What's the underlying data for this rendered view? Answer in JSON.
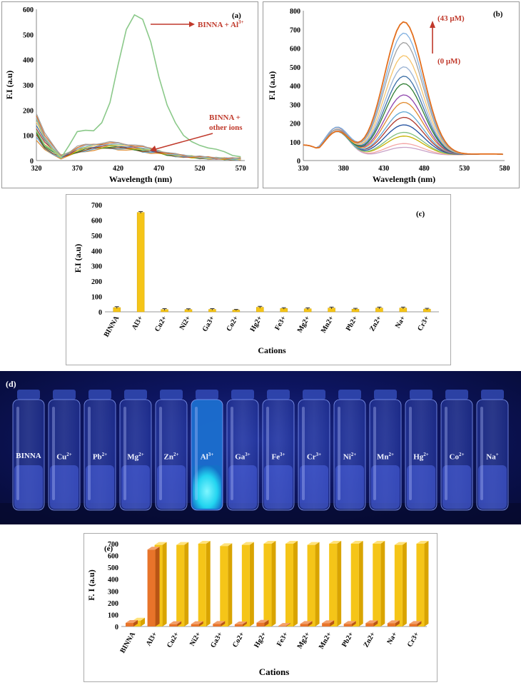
{
  "colors": {
    "series_red": "#c0392b",
    "bar_yellow": "#f5c518",
    "bar_orange": "#e8742a",
    "al_green": "#8bc98a"
  },
  "panel_a": {
    "label": "(a)",
    "ylabel": "F.I (a.u)",
    "xlabel": "Wavelength (nm)",
    "ann_al_prefix": "BINNA + Al",
    "ann_al_sup": "3+",
    "ann_other_1": "BINNA +",
    "ann_other_2": "other ions",
    "chart_data": {
      "type": "line",
      "title": "(a)",
      "xlabel": "Wavelength (nm)",
      "ylabel": "F.I (a.u)",
      "xlim": [
        320,
        575
      ],
      "ylim": [
        0,
        600
      ],
      "xticks": [
        "320",
        "370",
        "420",
        "470",
        "520",
        "570"
      ],
      "yticks": [
        "0",
        "100",
        "200",
        "300",
        "400",
        "500",
        "600"
      ],
      "series": [
        {
          "name": "BINNA + Al3+",
          "x": [
            320,
            330,
            340,
            350,
            360,
            370,
            380,
            390,
            400,
            410,
            420,
            430,
            440,
            450,
            460,
            470,
            480,
            490,
            500,
            510,
            520,
            530,
            540,
            550,
            560,
            570
          ],
          "values": [
            120,
            60,
            40,
            10,
            60,
            115,
            120,
            118,
            150,
            230,
            380,
            520,
            578,
            560,
            470,
            330,
            220,
            150,
            100,
            75,
            60,
            50,
            45,
            35,
            20,
            15
          ]
        },
        {
          "name": "BINNA + other ions (upper)",
          "x": [
            320,
            330,
            340,
            350,
            360,
            370,
            380,
            390,
            400,
            410,
            420,
            430,
            440,
            450,
            460,
            470,
            480,
            490,
            500,
            510,
            520,
            530,
            540,
            550,
            560,
            570
          ],
          "values": [
            190,
            110,
            60,
            20,
            35,
            55,
            62,
            66,
            70,
            72,
            70,
            66,
            62,
            55,
            48,
            40,
            30,
            25,
            20,
            18,
            15,
            12,
            10,
            10,
            8,
            8
          ]
        },
        {
          "name": "BINNA + other ions (lower)",
          "x": [
            320,
            330,
            340,
            350,
            360,
            370,
            380,
            390,
            400,
            410,
            420,
            430,
            440,
            450,
            460,
            470,
            480,
            490,
            500,
            510,
            520,
            530,
            540,
            550,
            560,
            570
          ],
          "values": [
            80,
            40,
            25,
            10,
            18,
            30,
            38,
            42,
            45,
            48,
            46,
            42,
            40,
            35,
            32,
            28,
            22,
            18,
            15,
            12,
            10,
            8,
            8,
            6,
            5,
            5
          ]
        }
      ]
    }
  },
  "panel_b": {
    "label": "(b)",
    "ylabel": "F.I (a.u)",
    "xlabel": "Wavelength (nm)",
    "ann_top": "(43 μM)",
    "ann_bottom": "(0 μM)",
    "chart_data": {
      "type": "line",
      "title": "(b)",
      "xlabel": "Wavelength (nm)",
      "ylabel": "F.I (a.u)",
      "xlim": [
        330,
        580
      ],
      "ylim": [
        0,
        800
      ],
      "xticks": [
        "330",
        "380",
        "430",
        "480",
        "530",
        "580"
      ],
      "yticks": [
        "0",
        "100",
        "200",
        "300",
        "400",
        "500",
        "600",
        "700",
        "800"
      ],
      "peak_wavelength": 455,
      "series_peaks": [
        90,
        110,
        150,
        170,
        210,
        250,
        280,
        330,
        370,
        430,
        470,
        520,
        580,
        650,
        700,
        760
      ],
      "series_colors": [
        "#c8a2c8",
        "#f4a6a6",
        "#c6b200",
        "#7fbf7f",
        "#1f4e9e",
        "#b03a2e",
        "#5fa8d3",
        "#e08a2d",
        "#8e44ad",
        "#2e7d32",
        "#3a6ea5",
        "#9ab2d3",
        "#f6c46a",
        "#a0a0a0",
        "#80b0e0",
        "#e36f1e"
      ]
    }
  },
  "panel_c": {
    "label": "(c)",
    "ylabel": "F.I (a.u)",
    "xlabel": "Cations",
    "chart_data": {
      "type": "bar",
      "title": "(c)",
      "xlabel": "Cations",
      "ylabel": "F.I (a.u)",
      "ylim": [
        0,
        700
      ],
      "yticks": [
        "0",
        "100",
        "200",
        "300",
        "400",
        "500",
        "600",
        "700"
      ],
      "categories": [
        "BINNA",
        "Al3+",
        "Cu2+",
        "Ni2+",
        "Ga3+",
        "Co2+",
        "Hg2+",
        "Fe3+",
        "Mg2+",
        "Mn2+",
        "Pb2+",
        "Zn2+",
        "Na+",
        "Cr3+"
      ],
      "values": [
        28,
        650,
        15,
        15,
        16,
        12,
        30,
        22,
        20,
        25,
        18,
        25,
        25,
        18
      ],
      "errors": [
        6,
        6,
        6,
        5,
        5,
        4,
        6,
        5,
        6,
        6,
        5,
        6,
        6,
        5
      ]
    }
  },
  "panel_d": {
    "label": "(d)",
    "vials": [
      {
        "name": "BINNA",
        "sup": ""
      },
      {
        "name": "Cu",
        "sup": "2+"
      },
      {
        "name": "Pb",
        "sup": "2+"
      },
      {
        "name": "Mg",
        "sup": "2+"
      },
      {
        "name": "Zn",
        "sup": "2+"
      },
      {
        "name": "Al",
        "sup": "3+"
      },
      {
        "name": "Ga",
        "sup": "3+"
      },
      {
        "name": "Fe",
        "sup": "3+"
      },
      {
        "name": "Cr",
        "sup": "3+"
      },
      {
        "name": "Ni",
        "sup": "2+"
      },
      {
        "name": "Mn",
        "sup": "2+"
      },
      {
        "name": "Hg",
        "sup": "2+"
      },
      {
        "name": "Co",
        "sup": "2+"
      },
      {
        "name": "Na",
        "sup": "+"
      }
    ],
    "highlighted_vial": "Al"
  },
  "panel_e": {
    "label": "(e)",
    "ylabel": "F. I (a.u)",
    "xlabel": "Cations",
    "chart_data": {
      "type": "bar",
      "title": "(e)",
      "xlabel": "Cations",
      "ylabel": "F. I (a.u)",
      "ylim": [
        0,
        700
      ],
      "yticks": [
        "0",
        "100",
        "200",
        "300",
        "400",
        "500",
        "600",
        "700"
      ],
      "categories": [
        "BINNA",
        "Al3+",
        "Cu2+",
        "Ni2+",
        "Ga3+",
        "Co2+",
        "Hg2+",
        "Fe3+",
        "Mg2+",
        "Mn2+",
        "Pb2+",
        "Zn2+",
        "Na+",
        "Cr3+"
      ],
      "series": [
        {
          "name": "Front (orange)",
          "values": [
            30,
            650,
            20,
            20,
            22,
            18,
            32,
            5,
            22,
            28,
            22,
            28,
            28,
            22
          ]
        },
        {
          "name": "Back (yellow)",
          "values": [
            50,
            690,
            690,
            700,
            680,
            690,
            700,
            700,
            690,
            700,
            700,
            700,
            690,
            700
          ]
        }
      ]
    }
  }
}
